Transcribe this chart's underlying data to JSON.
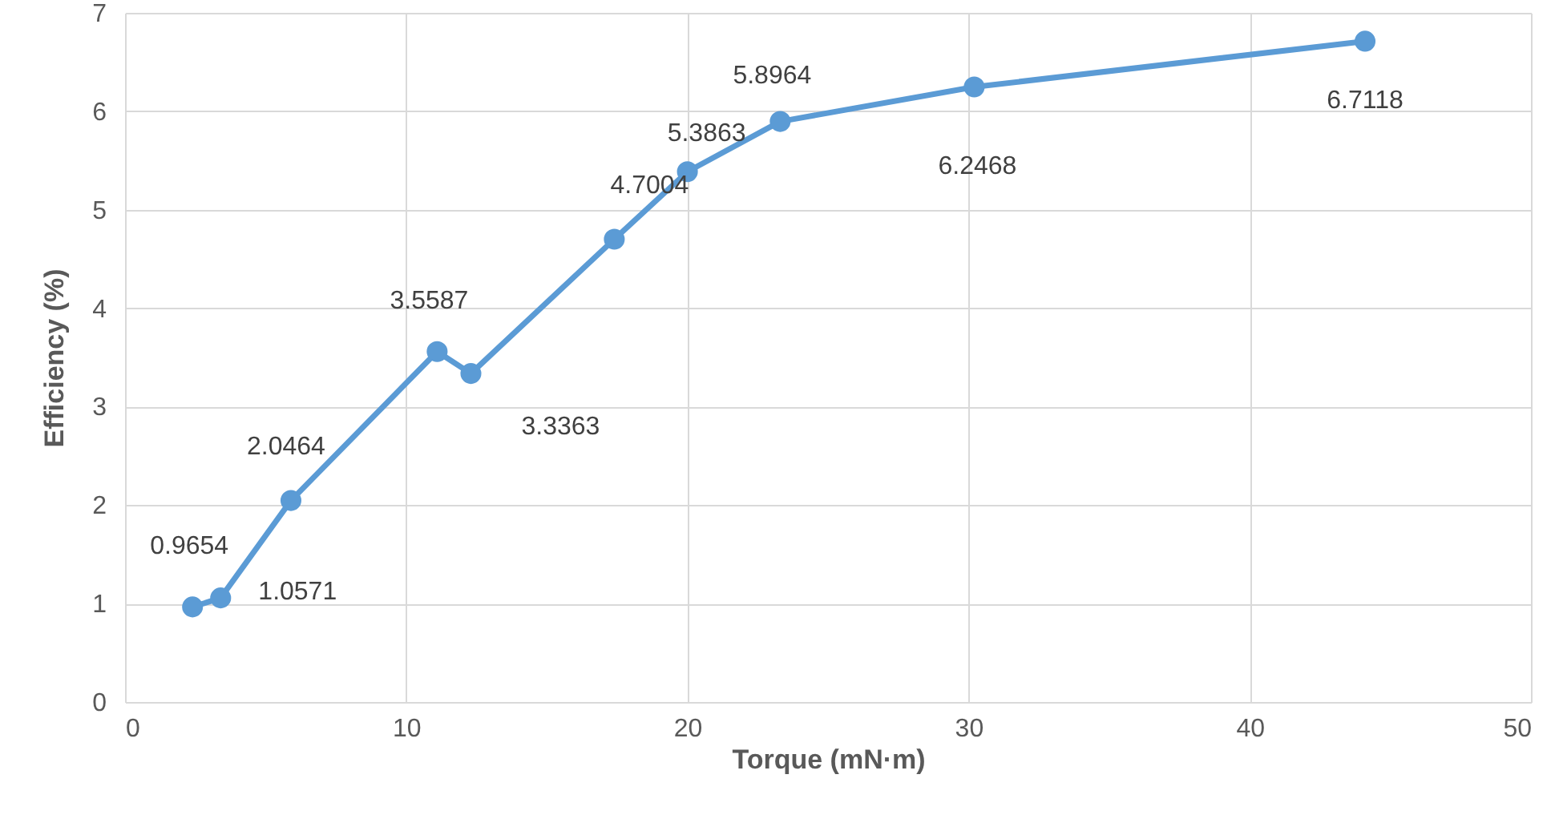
{
  "chart_data": {
    "type": "line",
    "xlabel": "Torque (mN·m)",
    "ylabel": "Efficiency (%)",
    "x": [
      2.4,
      3.4,
      5.9,
      11.1,
      12.3,
      17.4,
      20.0,
      23.3,
      30.2,
      44.1
    ],
    "series": [
      {
        "color": "#5b9bd5",
        "values": [
          0.9654,
          1.0571,
          2.0464,
          3.5587,
          3.3363,
          4.7004,
          5.3863,
          5.8964,
          6.2468,
          6.7118
        ]
      }
    ],
    "data_labels": true,
    "marker": "circle",
    "grid": true,
    "xlim": [
      0,
      50
    ],
    "xticks": [
      0,
      10,
      20,
      30,
      40,
      50
    ],
    "ylim": [
      0,
      7
    ],
    "yticks": [
      0,
      1,
      2,
      3,
      4,
      5,
      6,
      7
    ]
  }
}
